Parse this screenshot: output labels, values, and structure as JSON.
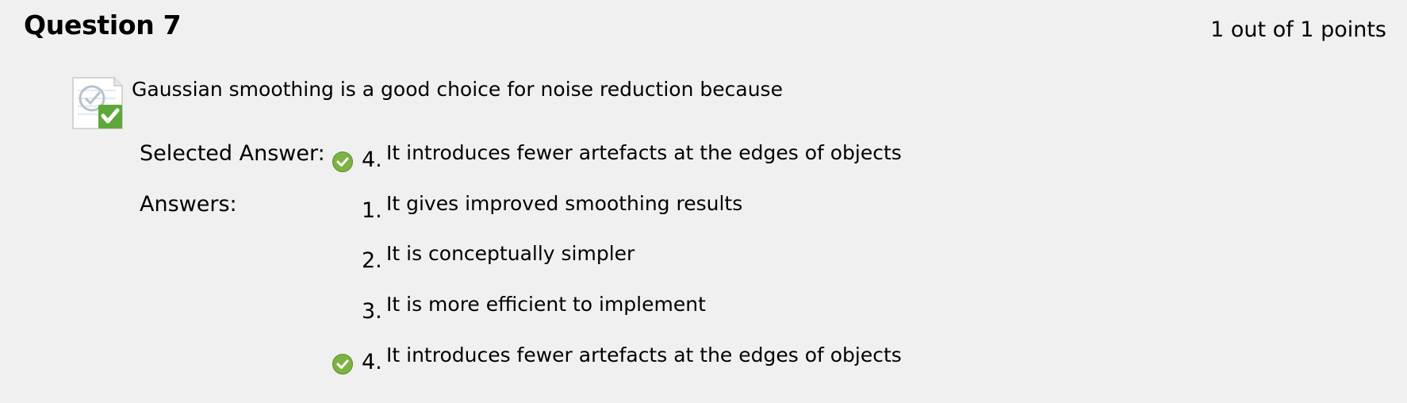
{
  "question": {
    "title": "Question 7",
    "points": "1 out of 1 points",
    "text": "Gaussian smoothing is a good choice for noise reduction because",
    "status_icon": "correct-question-icon"
  },
  "selected": {
    "label": "Selected Answer:",
    "number": "4.",
    "text": "It introduces fewer artefacts at the edges of objects",
    "correct": true
  },
  "answers": {
    "label": "Answers:",
    "items": [
      {
        "number": "1.",
        "text": "It gives improved smoothing results",
        "correct": false
      },
      {
        "number": "2.",
        "text": "It is conceptually simpler",
        "correct": false
      },
      {
        "number": "3.",
        "text": "It is more efficient to implement",
        "correct": false
      },
      {
        "number": "4.",
        "text": "It introduces fewer artefacts at the edges of objects",
        "correct": true
      }
    ]
  },
  "colors": {
    "background": "#f0f0f0",
    "check_green": "#7cb342"
  }
}
